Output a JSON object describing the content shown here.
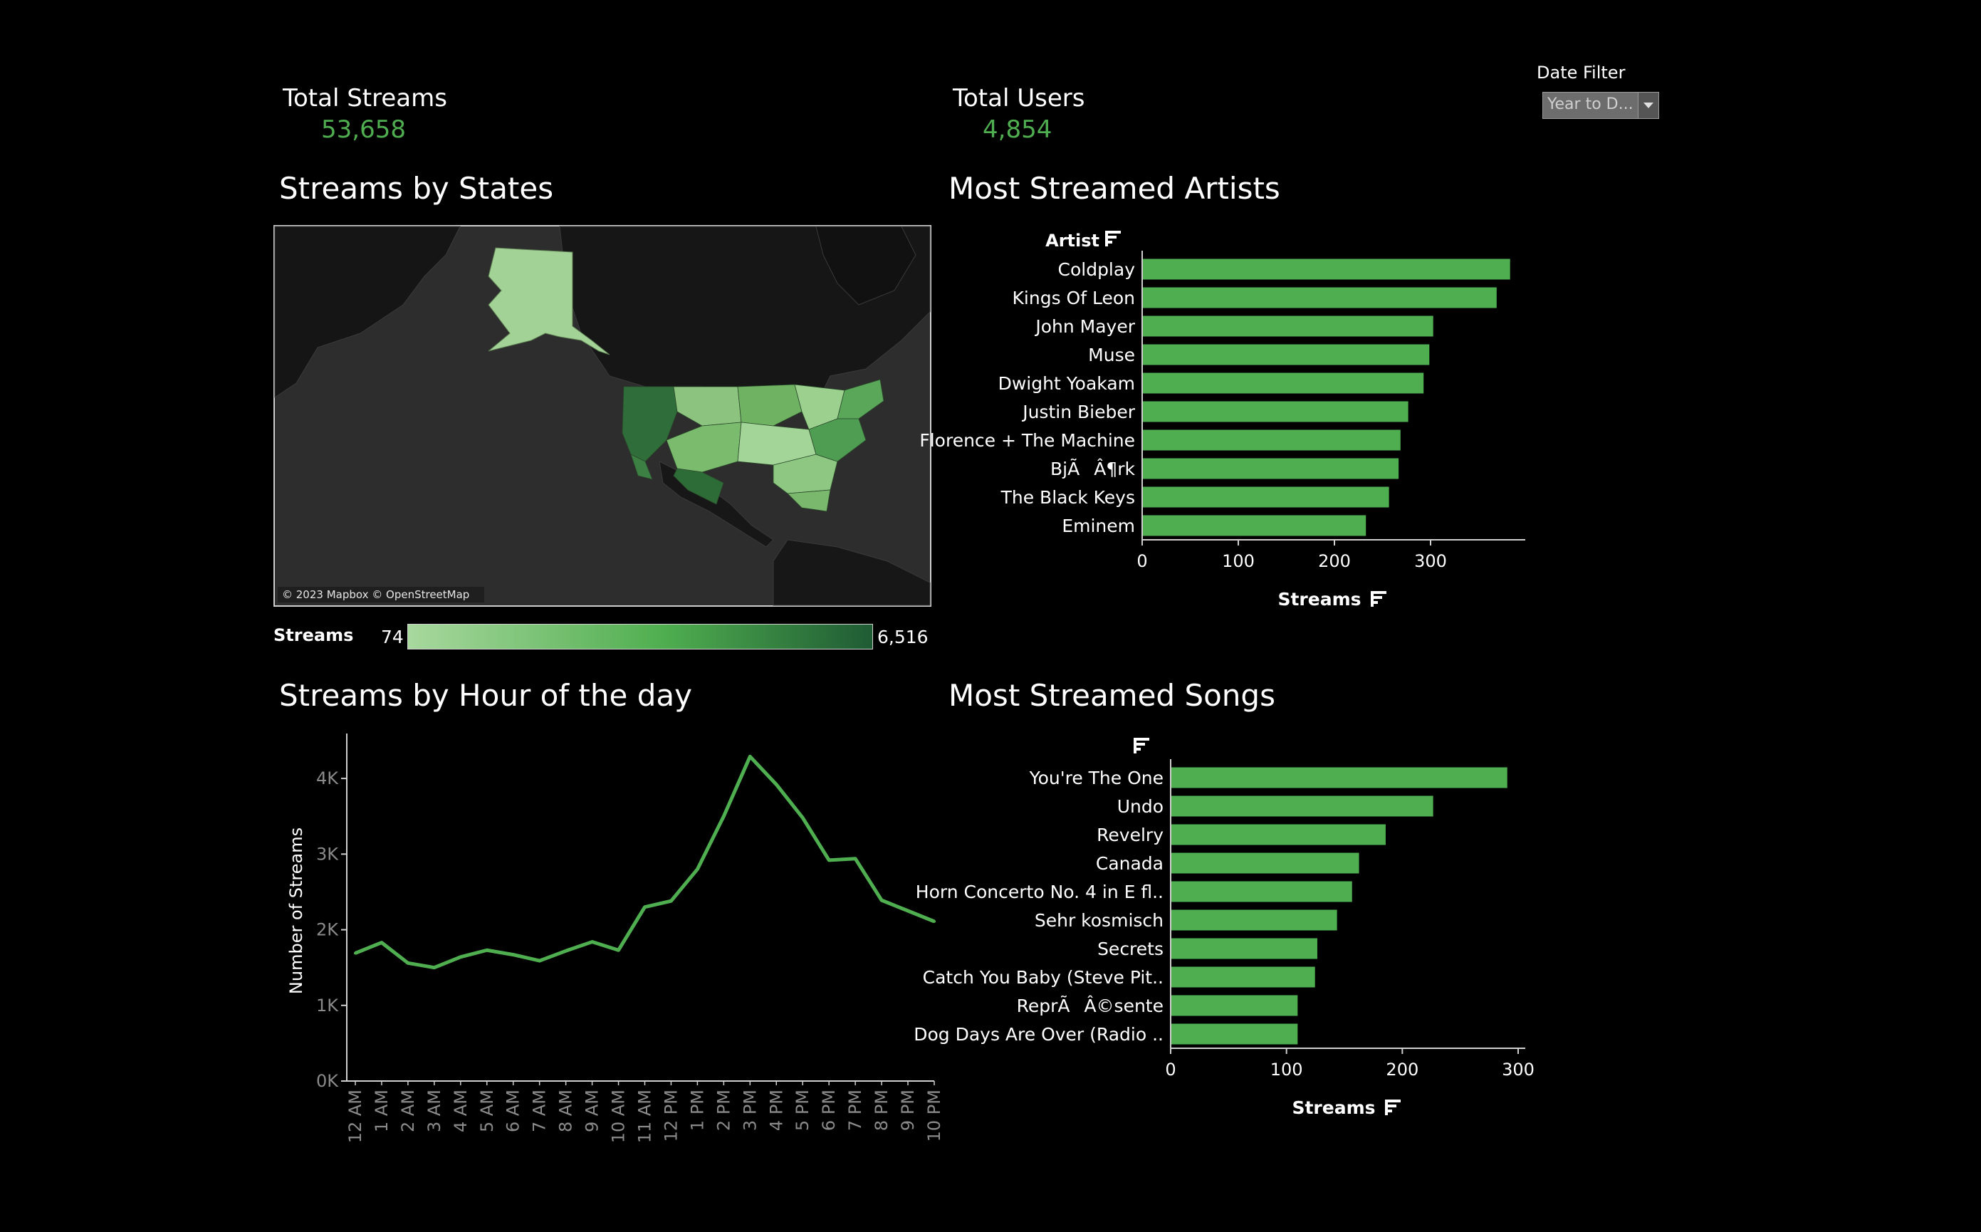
{
  "kpis": {
    "total_streams_label": "Total Streams",
    "total_streams_value": "53,658",
    "total_users_label": "Total Users",
    "total_users_value": "4,854"
  },
  "date_filter": {
    "label": "Date Filter",
    "value": "Year to D..."
  },
  "colors": {
    "accent": "#4fae4f",
    "line": "#4fae4f",
    "map_low": "#a8d89e",
    "map_high": "#1f5b34",
    "background": "#000000"
  },
  "map": {
    "title": "Streams by States",
    "attribution": "© 2023 Mapbox © OpenStreetMap",
    "legend_title": "Streams",
    "legend_min": "74",
    "legend_max": "6,516"
  },
  "hourly": {
    "title": "Streams by Hour of the day"
  },
  "artists": {
    "title": "Most Streamed Artists"
  },
  "songs": {
    "title": "Most Streamed Songs"
  },
  "chart_data": [
    {
      "type": "line",
      "title": "Streams by Hour of the day",
      "ylabel": "Number of Streams",
      "xlabel": "",
      "x": [
        "12 AM",
        "1 AM",
        "2 AM",
        "3 AM",
        "4 AM",
        "5 AM",
        "6 AM",
        "7 AM",
        "8 AM",
        "9 AM",
        "10 AM",
        "11 AM",
        "12 PM",
        "1 PM",
        "2 PM",
        "3 PM",
        "4 PM",
        "5 PM",
        "6 PM",
        "7 PM",
        "8 PM",
        "9 PM",
        "10 PM"
      ],
      "values": [
        1690,
        1830,
        1560,
        1500,
        1640,
        1730,
        1670,
        1590,
        1720,
        1840,
        1730,
        2300,
        2380,
        2800,
        3500,
        4290,
        3920,
        3480,
        2920,
        2940,
        2390,
        2250,
        2110
      ],
      "ylim": [
        0,
        4500
      ],
      "yticks": [
        0,
        1000,
        2000,
        3000,
        4000
      ],
      "ytick_labels": [
        "0K",
        "1K",
        "2K",
        "3K",
        "4K"
      ],
      "grid": false
    },
    {
      "type": "bar",
      "orientation": "horizontal",
      "title": "Most Streamed Artists",
      "category_header": "Artist",
      "xlabel": "Streams",
      "categories": [
        "Coldplay",
        "Kings Of Leon",
        "John Mayer",
        "Muse",
        "Dwight Yoakam",
        "Justin Bieber",
        "Florence + The Machine",
        "BjÃÂ¶rk",
        "The Black Keys",
        "Eminem"
      ],
      "values": [
        382,
        368,
        302,
        298,
        292,
        276,
        268,
        266,
        256,
        232
      ],
      "xlim": [
        0,
        400
      ],
      "xticks": [
        0,
        100,
        200,
        300
      ],
      "grid": false
    },
    {
      "type": "bar",
      "orientation": "horizontal",
      "title": "Most Streamed Songs",
      "category_header": "",
      "xlabel": "Streams",
      "categories": [
        "You're The One",
        "Undo",
        "Revelry",
        "Canada",
        "Horn Concerto No. 4 in E fl..",
        "Sehr kosmisch",
        "Secrets",
        "Catch You Baby (Steve Pit..",
        "ReprÃÂ©sente",
        "Dog Days Are Over (Radio .."
      ],
      "values": [
        290,
        226,
        185,
        162,
        156,
        143,
        126,
        124,
        109,
        109
      ],
      "xlim": [
        0,
        300
      ],
      "xticks": [
        0,
        100,
        200,
        300
      ],
      "grid": false
    }
  ]
}
